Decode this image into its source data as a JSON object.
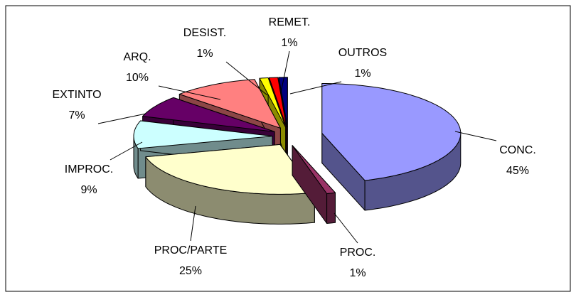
{
  "chart_data": {
    "type": "pie3d",
    "categories": [
      "CONC.",
      "PROC.",
      "PROC/PARTE",
      "IMPROC.",
      "EXTINTO",
      "ARQ.",
      "DESIST.",
      "REMET.",
      "OUTROS"
    ],
    "values": [
      45,
      1,
      25,
      9,
      7,
      10,
      1,
      1,
      1
    ],
    "value_labels": [
      "45%",
      "1%",
      "25%",
      "9%",
      "7%",
      "10%",
      "1%",
      "1%",
      "1%"
    ],
    "colors": [
      "#9999ff",
      "#993366",
      "#ffffcc",
      "#ccffff",
      "#660066",
      "#ff8080",
      "#ffff00",
      "#ff0000",
      "#000080"
    ]
  }
}
